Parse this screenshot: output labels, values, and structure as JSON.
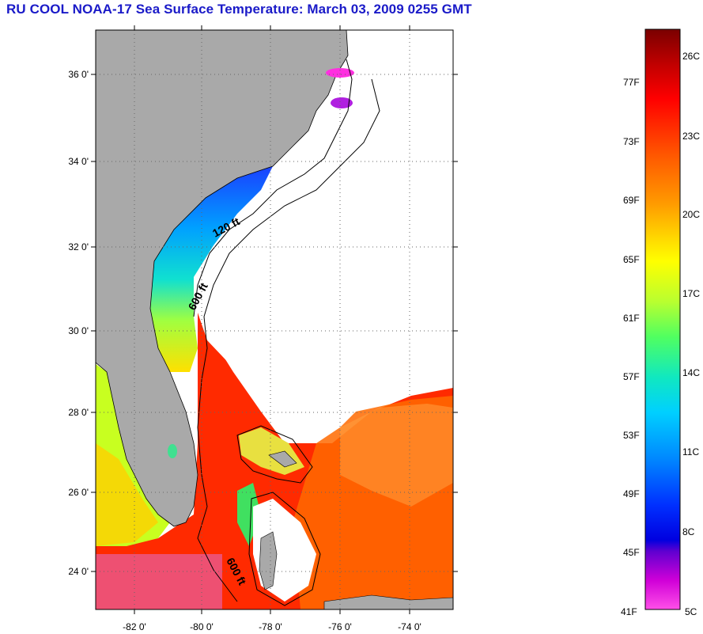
{
  "title": "RU COOL  NOAA-17  Sea Surface Temperature:  March 03, 2009 0255 GMT",
  "map": {
    "lat_labels": [
      "36 0'",
      "34 0'",
      "32 0'",
      "30 0'",
      "28 0'",
      "26 0'",
      "24 0'"
    ],
    "lon_labels": [
      "-82 0'",
      "-80 0'",
      "-78 0'",
      "-76 0'",
      "-74 0'"
    ],
    "contour_labels": [
      "120 ft",
      "600 ft",
      "600 ft"
    ]
  },
  "colorbar": {
    "fahrenheit_labels": [
      "77F",
      "73F",
      "69F",
      "65F",
      "61F",
      "57F",
      "53F",
      "49F",
      "45F",
      "41F"
    ],
    "celsius_labels": [
      "26C",
      "23C",
      "20C",
      "17C",
      "14C",
      "11C",
      "8C",
      "5C"
    ]
  },
  "colors": {
    "land": "#a9a9a9",
    "title": "#1a1ac8",
    "gradient": [
      "#7a0000",
      "#c80000",
      "#ff0000",
      "#ff6000",
      "#ffa000",
      "#ffe000",
      "#d8ff20",
      "#60ff60",
      "#10e8c0",
      "#00c8ff",
      "#0080ff",
      "#0020ff",
      "#0000e0",
      "#8000d0",
      "#e000d8",
      "#ff40e0"
    ]
  }
}
